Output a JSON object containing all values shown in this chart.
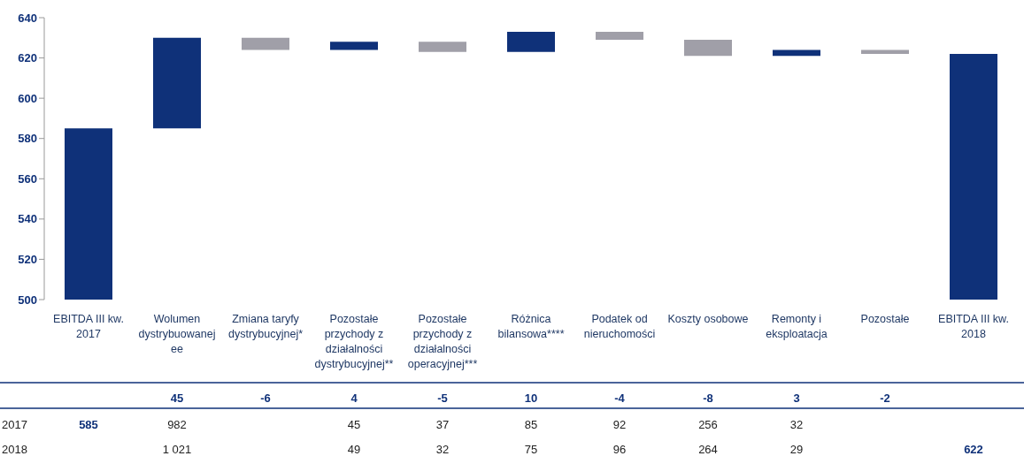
{
  "chart_data": {
    "type": "bar",
    "categories": [
      "EBITDA III kw. 2017",
      "Wolumen dystrybuowanej ee",
      "Zmiana taryfy dystrybucyjnej*",
      "Pozostałe przychody z działalności dystrybucyjnej**",
      "Pozostałe przychody z działalności operacyjnej***",
      "Różnica bilansowa****",
      "Podatek od nieruchomości",
      "Koszty osobowe",
      "Remonty i eksploatacja",
      "Pozostałe",
      "EBITDA III kw. 2018"
    ],
    "values": [
      585,
      45,
      -6,
      4,
      -5,
      10,
      -4,
      -8,
      3,
      -2,
      622
    ],
    "base": [
      null,
      585,
      630,
      624,
      628,
      623,
      633,
      629,
      621,
      624,
      null
    ],
    "colors": [
      "#0f3179",
      "#0f3179",
      "#a09fa8",
      "#0f3179",
      "#a09fa8",
      "#0f3179",
      "#a09fa8",
      "#a09fa8",
      "#0f3179",
      "#a09fa8",
      "#0f3179"
    ],
    "ylim": [
      500,
      640
    ],
    "yticks": [
      500,
      520,
      540,
      560,
      580,
      600,
      620,
      640
    ],
    "annotations": [
      "45",
      "-6",
      "4",
      "-5",
      "10",
      "-4",
      "-8",
      "3",
      "-2",
      "2017",
      "585",
      "982",
      "45",
      "37",
      "85",
      "92",
      "256",
      "32",
      "2018",
      "1 021",
      "49",
      "32",
      "75",
      "96",
      "264",
      "29",
      "622"
    ]
  }
}
